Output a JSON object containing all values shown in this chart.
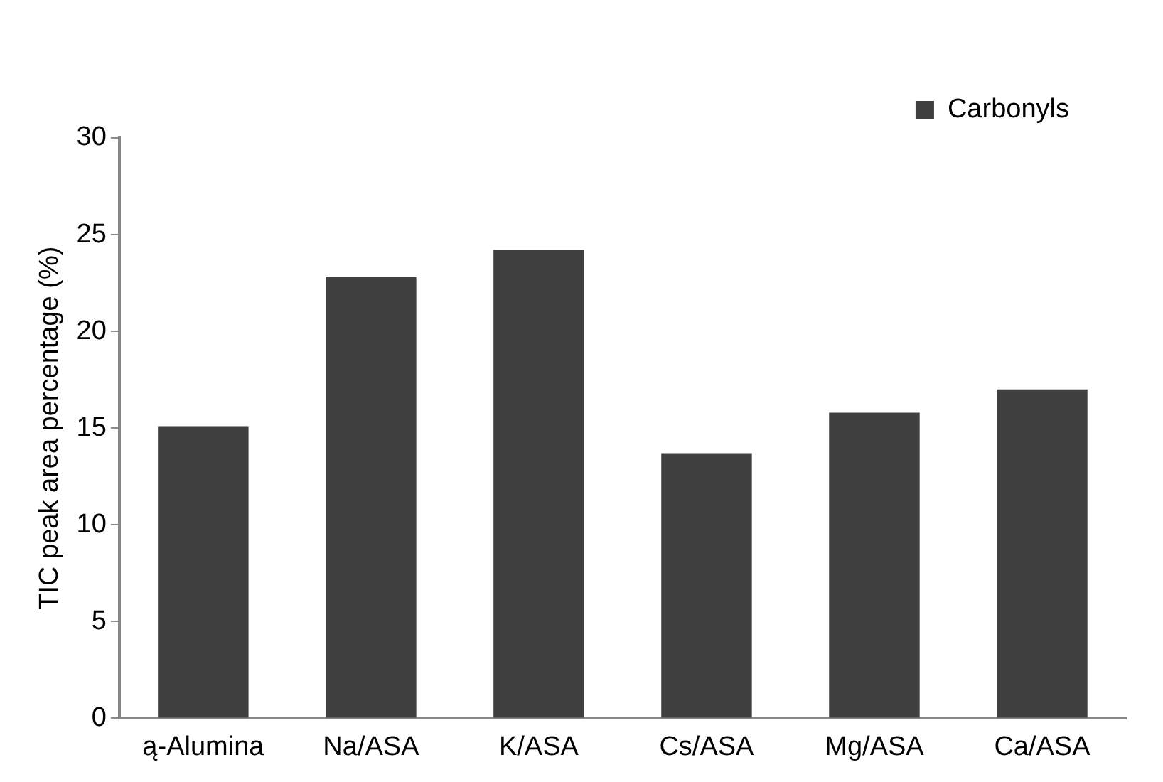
{
  "chart_data": {
    "type": "bar",
    "ylabel": "TIC peak area percentage (%)",
    "categories": [
      "ą-Alumina",
      "Na/ASA",
      "K/ASA",
      "Cs/ASA",
      "Mg/ASA",
      "Ca/ASA"
    ],
    "series": [
      {
        "name": "Carbonyls",
        "color": "#404040",
        "values": [
          15.1,
          22.8,
          24.2,
          13.7,
          15.8,
          17.0
        ]
      }
    ],
    "ylim": [
      0,
      30
    ],
    "yticks": [
      0,
      5,
      10,
      15,
      20,
      25,
      30
    ],
    "grid": false,
    "legend": "top right"
  }
}
